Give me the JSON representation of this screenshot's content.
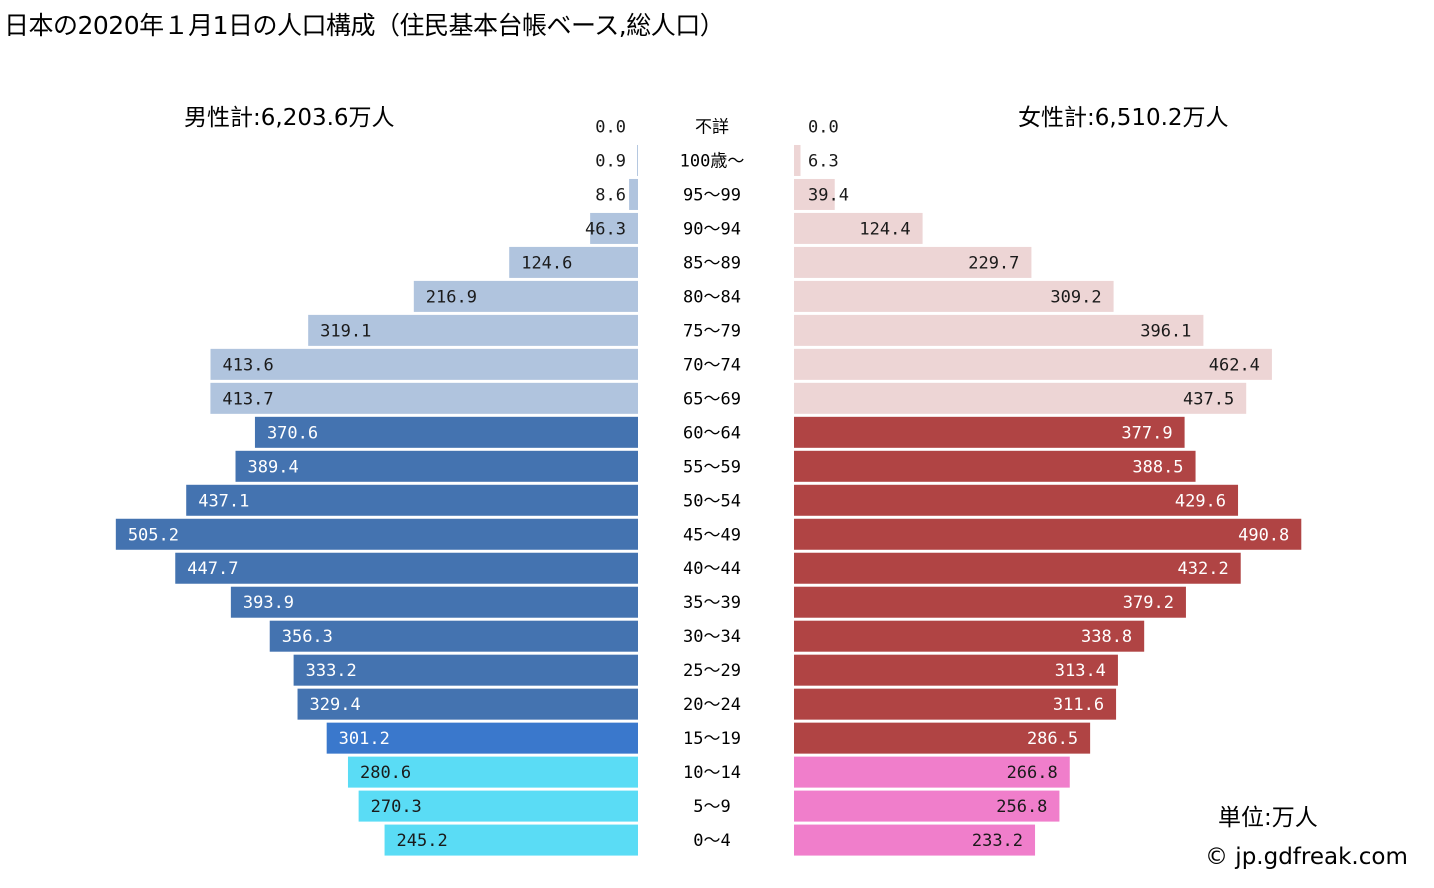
{
  "title": "日本の2020年１月1日の人口構成（住民基本台帳ベース,総人口）",
  "male_total": "男性計:6,203.6万人",
  "female_total": "女性計:6,510.2万人",
  "unit": "単位:万人",
  "copyright": "© jp.gdfreak.com",
  "chart_data": {
    "type": "bar",
    "orientation": "horizontal-pyramid",
    "categories": [
      "不詳",
      "100歳～",
      "95～99",
      "90～94",
      "85～89",
      "80～84",
      "75～79",
      "70～74",
      "65～69",
      "60～64",
      "55～59",
      "50～54",
      "45～49",
      "40～44",
      "35～39",
      "30～34",
      "25～29",
      "20～24",
      "15～19",
      "10～14",
      "5～9",
      "0～4"
    ],
    "series": [
      {
        "side": "male",
        "values": [
          0.0,
          0.9,
          8.6,
          46.3,
          124.6,
          216.9,
          319.1,
          413.6,
          413.7,
          370.6,
          389.4,
          437.1,
          505.2,
          447.7,
          393.9,
          356.3,
          333.2,
          329.4,
          301.2,
          280.6,
          270.3,
          245.2
        ],
        "colors": [
          "#b0c4de",
          "#b0c4de",
          "#b0c4de",
          "#b0c4de",
          "#b0c4de",
          "#b0c4de",
          "#b0c4de",
          "#b0c4de",
          "#b0c4de",
          "#4473b0",
          "#4473b0",
          "#4473b0",
          "#4473b0",
          "#4473b0",
          "#4473b0",
          "#4473b0",
          "#4473b0",
          "#4473b0",
          "#3a78cc",
          "#5adcf5",
          "#5adcf5",
          "#5adcf5"
        ]
      },
      {
        "side": "female",
        "values": [
          0.0,
          6.3,
          39.4,
          124.4,
          229.7,
          309.2,
          396.1,
          462.4,
          437.5,
          377.9,
          388.5,
          429.6,
          490.8,
          432.2,
          379.2,
          338.8,
          313.4,
          311.6,
          286.5,
          266.8,
          256.8,
          233.2
        ],
        "colors": [
          "#edd5d5",
          "#edd5d5",
          "#edd5d5",
          "#edd5d5",
          "#edd5d5",
          "#edd5d5",
          "#edd5d5",
          "#edd5d5",
          "#edd5d5",
          "#b04444",
          "#b04444",
          "#b04444",
          "#b04444",
          "#b04444",
          "#b04444",
          "#b04444",
          "#b04444",
          "#b04444",
          "#b04444",
          "#f07ecb",
          "#f07ecb",
          "#f07ecb"
        ]
      }
    ],
    "label_colors": {
      "light": "#1a1a1a",
      "dark": "#ffffff"
    },
    "xlim": [
      0,
      520
    ]
  }
}
